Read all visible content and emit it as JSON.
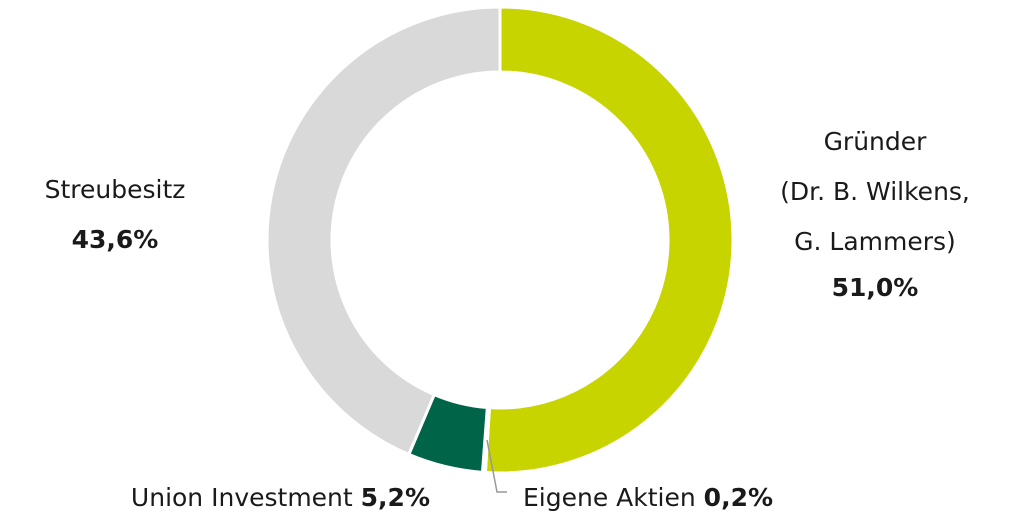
{
  "chart_data": {
    "type": "donut",
    "categories": [
      "Gründer\n(Dr. B. Wilkens,\nG. Lammers)",
      "Eigene Aktien",
      "Union Investment",
      "Streubesitz"
    ],
    "values": [
      51.0,
      0.2,
      5.2,
      43.6
    ],
    "value_labels": [
      "51,0%",
      "0,2%",
      "5,2%",
      "43,6%"
    ],
    "colors": [
      "#c8d400",
      "#b5b5b5",
      "#006548",
      "#d9d9d9"
    ]
  }
}
